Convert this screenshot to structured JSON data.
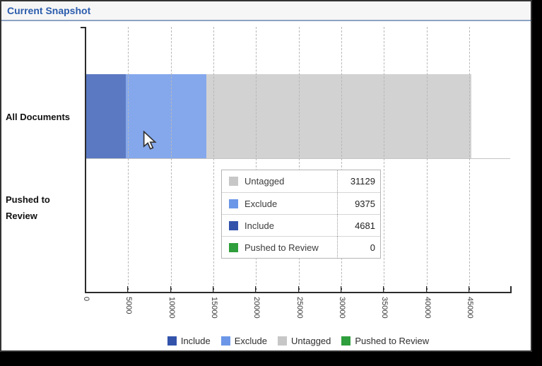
{
  "window": {
    "title": "Current Snapshot"
  },
  "chart_data": {
    "type": "bar",
    "orientation": "horizontal",
    "stacked": true,
    "title": "",
    "categories": [
      "All Documents",
      "Pushed to Review"
    ],
    "category_labels": [
      [
        "All Documents"
      ],
      [
        "Pushed to",
        "Review"
      ]
    ],
    "series": [
      {
        "name": "Include",
        "values": [
          4681,
          0
        ],
        "color": "#3353ab",
        "bar_color": "#5b79c2"
      },
      {
        "name": "Exclude",
        "values": [
          9375,
          0
        ],
        "color": "#6c97e8",
        "bar_color": "#85a8ec"
      },
      {
        "name": "Untagged",
        "values": [
          31129,
          0
        ],
        "color": "#c7c7c7",
        "bar_color": "#d2d2d2"
      },
      {
        "name": "Pushed to Review",
        "values": [
          0,
          0
        ],
        "color": "#2f9e3c",
        "bar_color": "#2f9e3c"
      }
    ],
    "xlabel": "",
    "ylabel": "",
    "xlim": [
      0,
      45000
    ],
    "x_ticks": [
      0,
      5000,
      10000,
      15000,
      20000,
      25000,
      30000,
      35000,
      40000,
      45000
    ],
    "x_tick_labels": [
      "0",
      "5000",
      "10000",
      "15000",
      "20000",
      "25000",
      "30000",
      "35000",
      "40000",
      "45000"
    ],
    "grid": "vertical-dashed",
    "legend_position": "bottom"
  },
  "tooltip": {
    "rows": [
      {
        "label": "Untagged",
        "value": "31129",
        "color": "#c7c7c7"
      },
      {
        "label": "Exclude",
        "value": "9375",
        "color": "#6c97e8"
      },
      {
        "label": "Include",
        "value": "4681",
        "color": "#3353ab"
      },
      {
        "label": "Pushed to Review",
        "value": "0",
        "color": "#2f9e3c"
      }
    ]
  },
  "legend": {
    "items": [
      {
        "label": "Include",
        "color": "#3353ab"
      },
      {
        "label": "Exclude",
        "color": "#6c97e8"
      },
      {
        "label": "Untagged",
        "color": "#c7c7c7"
      },
      {
        "label": "Pushed to Review",
        "color": "#2f9e3c"
      }
    ]
  }
}
